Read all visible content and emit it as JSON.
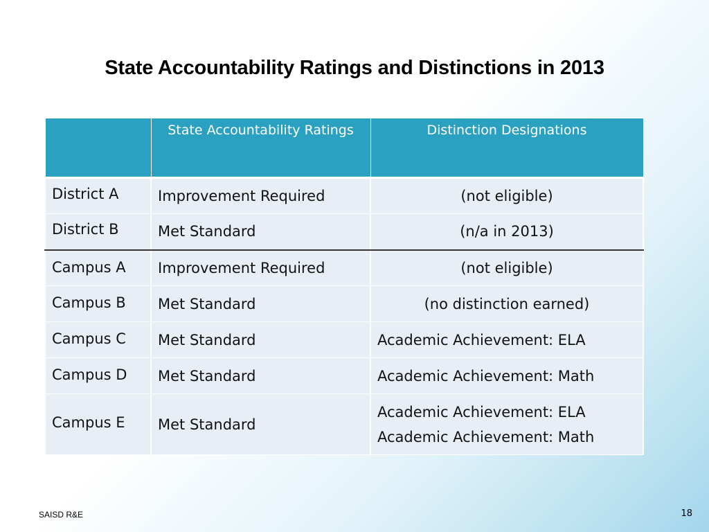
{
  "slide": {
    "title": "State Accountability Ratings and Distinctions in 2013",
    "footer_left": "SAISD R&E",
    "page_number": "18"
  },
  "table": {
    "headers": [
      "",
      "State Accountability Ratings",
      "Distinction Designations"
    ],
    "rows": [
      {
        "name": "District A",
        "rating": "Improvement Required",
        "distinctions": [
          "(not eligible)"
        ]
      },
      {
        "name": "District B",
        "rating": "Met Standard",
        "distinctions": [
          "(n/a in 2013)"
        ]
      },
      {
        "name": "Campus A",
        "rating": "Improvement Required",
        "distinctions": [
          "(not eligible)"
        ]
      },
      {
        "name": "Campus B",
        "rating": "Met Standard",
        "distinctions": [
          "(no distinction earned)"
        ]
      },
      {
        "name": "Campus C",
        "rating": "Met Standard",
        "distinctions": [
          "Academic Achievement: ELA"
        ]
      },
      {
        "name": "Campus D",
        "rating": "Met Standard",
        "distinctions": [
          "Academic Achievement: Math"
        ]
      },
      {
        "name": "Campus E",
        "rating": "Met Standard",
        "distinctions": [
          "Academic Achievement: ELA",
          "Academic Achievement: Math"
        ]
      }
    ]
  },
  "colors": {
    "header_background": "#2aa1c0",
    "cell_background": "#e8eef5",
    "header_text": "#ffffff"
  }
}
